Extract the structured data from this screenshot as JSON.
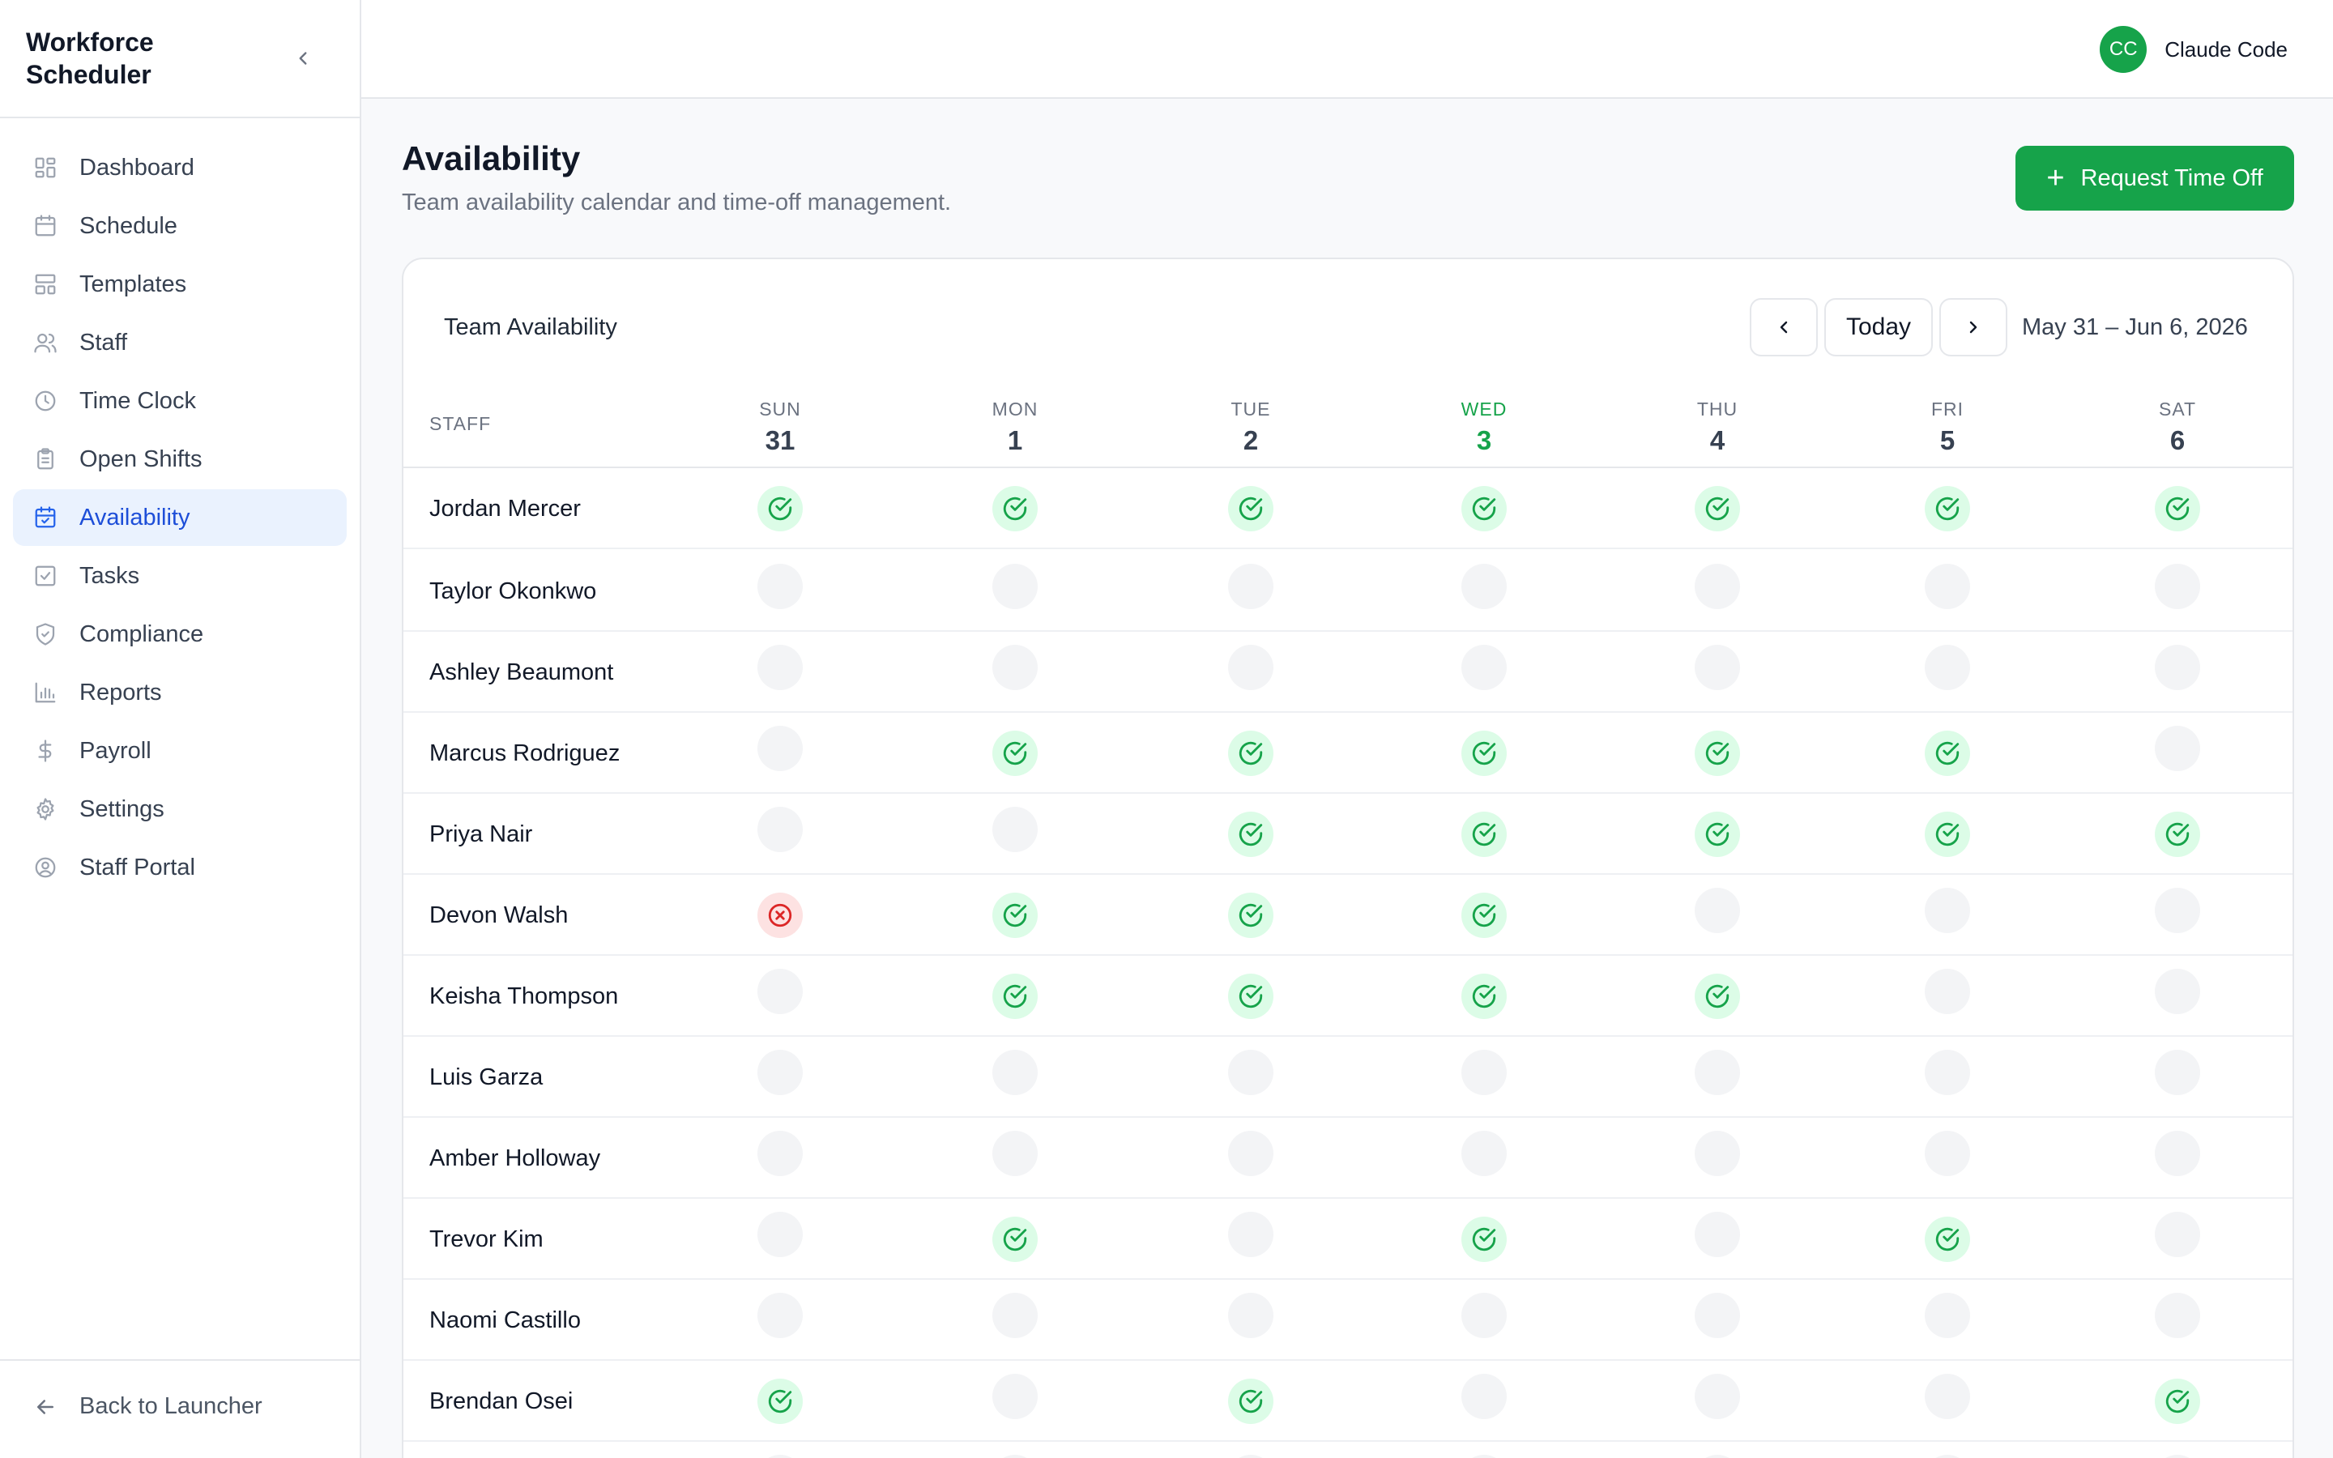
{
  "app": {
    "title": "Workforce Scheduler"
  },
  "sidebar": {
    "items": [
      {
        "label": "Dashboard",
        "icon": "dashboard-icon",
        "active": false
      },
      {
        "label": "Schedule",
        "icon": "calendar-icon",
        "active": false
      },
      {
        "label": "Templates",
        "icon": "template-icon",
        "active": false
      },
      {
        "label": "Staff",
        "icon": "users-icon",
        "active": false
      },
      {
        "label": "Time Clock",
        "icon": "clock-icon",
        "active": false
      },
      {
        "label": "Open Shifts",
        "icon": "clipboard-icon",
        "active": false
      },
      {
        "label": "Availability",
        "icon": "calendar-check-icon",
        "active": true
      },
      {
        "label": "Tasks",
        "icon": "checkbox-icon",
        "active": false
      },
      {
        "label": "Compliance",
        "icon": "shield-check-icon",
        "active": false
      },
      {
        "label": "Reports",
        "icon": "bar-chart-icon",
        "active": false
      },
      {
        "label": "Payroll",
        "icon": "dollar-icon",
        "active": false
      },
      {
        "label": "Settings",
        "icon": "gear-icon",
        "active": false
      },
      {
        "label": "Staff Portal",
        "icon": "user-circle-icon",
        "active": false
      }
    ],
    "back_label": "Back to Launcher"
  },
  "header": {
    "user_initials": "CC",
    "user_name": "Claude Code"
  },
  "page": {
    "title": "Availability",
    "subtitle": "Team availability calendar and time-off management.",
    "request_button": "Request Time Off"
  },
  "calendar": {
    "title": "Team Availability",
    "today_label": "Today",
    "range": "May 31 – Jun 6, 2026",
    "staff_header": "STAFF",
    "days": [
      {
        "name": "SUN",
        "date": "31",
        "today": false
      },
      {
        "name": "MON",
        "date": "1",
        "today": false
      },
      {
        "name": "TUE",
        "date": "2",
        "today": false
      },
      {
        "name": "WED",
        "date": "3",
        "today": true
      },
      {
        "name": "THU",
        "date": "4",
        "today": false
      },
      {
        "name": "FRI",
        "date": "5",
        "today": false
      },
      {
        "name": "SAT",
        "date": "6",
        "today": false
      }
    ],
    "rows": [
      {
        "name": "Jordan Mercer",
        "status": [
          "a",
          "a",
          "a",
          "a",
          "a",
          "a",
          "a"
        ]
      },
      {
        "name": "Taylor Okonkwo",
        "status": [
          "n",
          "n",
          "n",
          "n",
          "n",
          "n",
          "n"
        ]
      },
      {
        "name": "Ashley Beaumont",
        "status": [
          "n",
          "n",
          "n",
          "n",
          "n",
          "n",
          "n"
        ]
      },
      {
        "name": "Marcus Rodriguez",
        "status": [
          "n",
          "a",
          "a",
          "a",
          "a",
          "a",
          "n"
        ]
      },
      {
        "name": "Priya Nair",
        "status": [
          "n",
          "n",
          "a",
          "a",
          "a",
          "a",
          "a"
        ]
      },
      {
        "name": "Devon Walsh",
        "status": [
          "u",
          "a",
          "a",
          "a",
          "n",
          "n",
          "n"
        ]
      },
      {
        "name": "Keisha Thompson",
        "status": [
          "n",
          "a",
          "a",
          "a",
          "a",
          "n",
          "n"
        ]
      },
      {
        "name": "Luis Garza",
        "status": [
          "n",
          "n",
          "n",
          "n",
          "n",
          "n",
          "n"
        ]
      },
      {
        "name": "Amber Holloway",
        "status": [
          "n",
          "n",
          "n",
          "n",
          "n",
          "n",
          "n"
        ]
      },
      {
        "name": "Trevor Kim",
        "status": [
          "n",
          "a",
          "n",
          "a",
          "n",
          "a",
          "n"
        ]
      },
      {
        "name": "Naomi Castillo",
        "status": [
          "n",
          "n",
          "n",
          "n",
          "n",
          "n",
          "n"
        ]
      },
      {
        "name": "Brendan Osei",
        "status": [
          "a",
          "n",
          "a",
          "n",
          "n",
          "n",
          "a"
        ]
      },
      {
        "name": "",
        "status": [
          "n",
          "n",
          "n",
          "n",
          "n",
          "n",
          "n"
        ]
      }
    ]
  },
  "colors": {
    "brand": "#16a34a",
    "active_nav": "#1d4ed8",
    "unavailable": "#dc2626"
  }
}
